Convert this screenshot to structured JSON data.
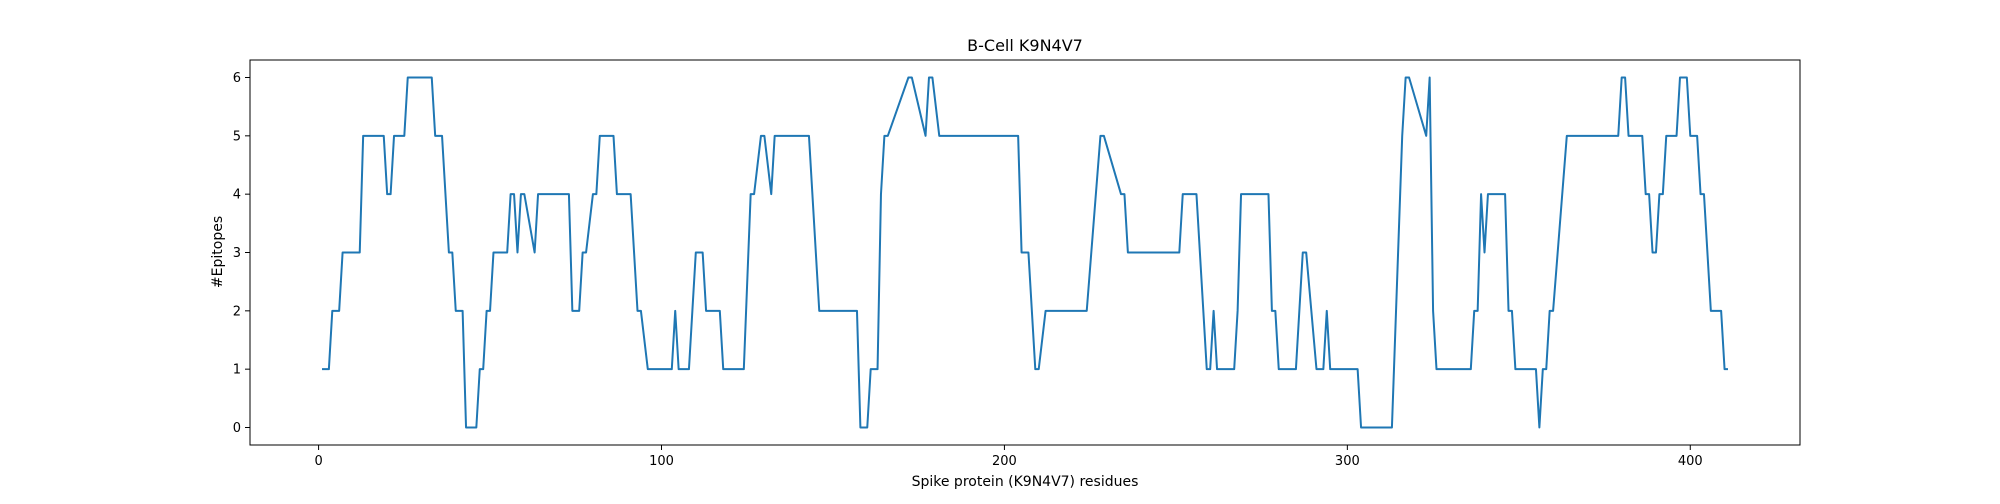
{
  "chart_data": {
    "type": "line",
    "title": "B-Cell K9N4V7",
    "xlabel": "Spike protein (K9N4V7) residues",
    "ylabel": "#Epitopes",
    "xlim": [
      -20,
      432
    ],
    "ylim": [
      -0.3,
      6.3
    ],
    "xticks": [
      0,
      100,
      200,
      300,
      400
    ],
    "yticks": [
      0,
      1,
      2,
      3,
      4,
      5,
      6
    ],
    "grid": false,
    "color": "#1f77b4",
    "series": [
      {
        "x": [
          1,
          3,
          4,
          6,
          7,
          12,
          13,
          19,
          20,
          21,
          22,
          25,
          26,
          33,
          34,
          36,
          38,
          39,
          40,
          42,
          43,
          46,
          47,
          48,
          49,
          50,
          51,
          55,
          56,
          57,
          58,
          59,
          60,
          63,
          64,
          65,
          73,
          74,
          76,
          77,
          78,
          80,
          81,
          82,
          86,
          87,
          91,
          93,
          94,
          96,
          103,
          104,
          105,
          108,
          109,
          110,
          112,
          113,
          117,
          118,
          124,
          126,
          127,
          129,
          130,
          132,
          133,
          134,
          135,
          143,
          146,
          147,
          157,
          158,
          160,
          161,
          163,
          164,
          165,
          166,
          172,
          173,
          177,
          178,
          179,
          181,
          182,
          204,
          205,
          207,
          209,
          210,
          212,
          213,
          224,
          228,
          229,
          234,
          235,
          236,
          237,
          251,
          252,
          256,
          259,
          260,
          261,
          262,
          263,
          267,
          268,
          269,
          277,
          278,
          279,
          280,
          285,
          287,
          288,
          291,
          293,
          294,
          295,
          296,
          303,
          304,
          313,
          316,
          317,
          318,
          323,
          324,
          325,
          326,
          327,
          336,
          337,
          338,
          339,
          340,
          341,
          346,
          347,
          348,
          349,
          354,
          355,
          356,
          357,
          358,
          359,
          360,
          364,
          365,
          379,
          380,
          381,
          382,
          386,
          387,
          388,
          389,
          390,
          391,
          392,
          393,
          396,
          397,
          399,
          400,
          402,
          403,
          404,
          406,
          407,
          409,
          410,
          411
        ],
        "y": [
          1,
          1,
          2,
          2,
          3,
          3,
          5,
          5,
          4,
          4,
          5,
          5,
          6,
          6,
          5,
          5,
          3,
          3,
          2,
          2,
          0,
          0,
          1,
          1,
          2,
          2,
          3,
          3,
          4,
          4,
          3,
          4,
          4,
          3,
          4,
          4,
          4,
          2,
          2,
          3,
          3,
          4,
          4,
          5,
          5,
          4,
          4,
          2,
          2,
          1,
          1,
          2,
          1,
          1,
          2,
          3,
          3,
          2,
          2,
          1,
          1,
          4,
          4,
          5,
          5,
          4,
          5,
          5,
          5,
          5,
          2,
          2,
          2,
          0,
          0,
          1,
          1,
          4,
          5,
          5,
          6,
          6,
          5,
          6,
          6,
          5,
          5,
          5,
          3,
          3,
          1,
          1,
          2,
          2,
          2,
          5,
          5,
          4,
          4,
          3,
          3,
          3,
          4,
          4,
          1,
          1,
          2,
          1,
          1,
          1,
          2,
          4,
          4,
          2,
          2,
          1,
          1,
          3,
          3,
          1,
          1,
          2,
          1,
          1,
          1,
          0,
          0,
          5,
          6,
          6,
          5,
          6,
          2,
          1,
          1,
          1,
          2,
          2,
          4,
          3,
          4,
          4,
          2,
          2,
          1,
          1,
          1,
          0,
          1,
          1,
          2,
          2,
          5,
          5,
          5,
          6,
          6,
          5,
          5,
          4,
          4,
          3,
          3,
          4,
          4,
          5,
          5,
          6,
          6,
          5,
          5,
          4,
          4,
          2,
          2,
          2,
          1,
          1
        ]
      }
    ]
  }
}
